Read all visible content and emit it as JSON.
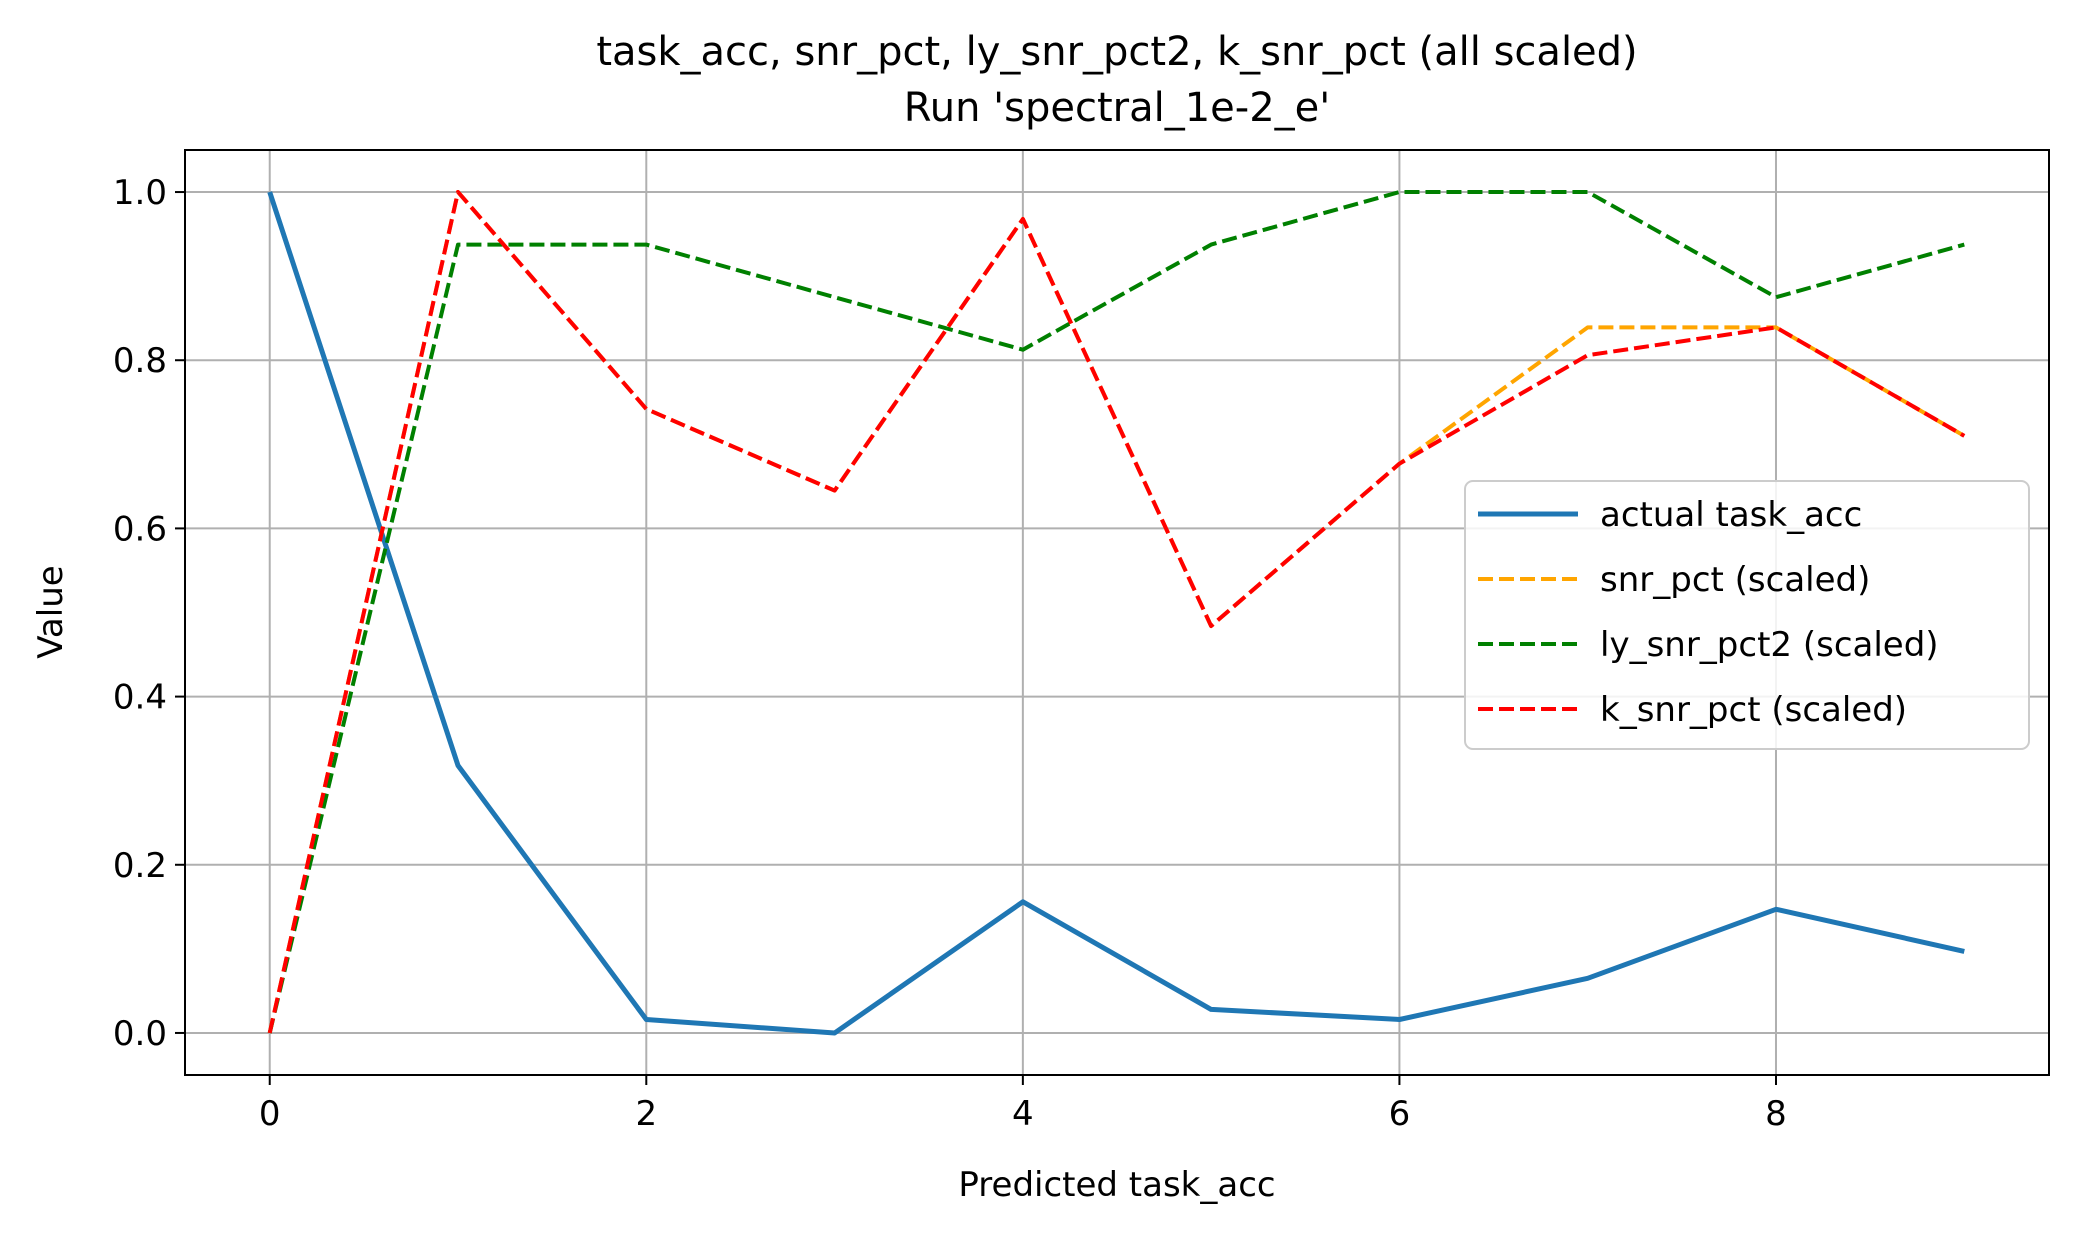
{
  "chart_data": {
    "type": "line",
    "title_line1": "task_acc, snr_pct, ly_snr_pct2, k_snr_pct (all scaled)",
    "title_line2": "Run 'spectral_1e-2_e'",
    "xlabel": "Predicted task_acc",
    "ylabel": "Value",
    "xlim": [
      -0.45,
      9.45
    ],
    "ylim": [
      -0.05,
      1.05
    ],
    "xticks": [
      0,
      2,
      4,
      6,
      8
    ],
    "yticks": [
      0.0,
      0.2,
      0.4,
      0.6,
      0.8,
      1.0
    ],
    "xtick_labels": [
      "0",
      "2",
      "4",
      "6",
      "8"
    ],
    "ytick_labels": [
      "0.0",
      "0.2",
      "0.4",
      "0.6",
      "0.8",
      "1.0"
    ],
    "grid": true,
    "legend_position": "center-right",
    "x": [
      0,
      1,
      2,
      3,
      4,
      5,
      6,
      7,
      8,
      9
    ],
    "series": [
      {
        "name": "actual task_acc",
        "color": "#1f77b4",
        "style": "solid",
        "values": [
          1.0,
          0.318,
          0.016,
          0.0,
          0.156,
          0.028,
          0.016,
          0.065,
          0.147,
          0.097
        ]
      },
      {
        "name": "snr_pct (scaled)",
        "color": "#ffa500",
        "style": "dashed",
        "values": [
          0.0,
          1.0,
          0.742,
          0.645,
          0.968,
          0.484,
          0.677,
          0.839,
          0.839,
          0.71
        ]
      },
      {
        "name": "ly_snr_pct2 (scaled)",
        "color": "#008000",
        "style": "dashed",
        "values": [
          0.0,
          0.9375,
          0.9375,
          0.875,
          0.8125,
          0.9375,
          1.0,
          1.0,
          0.875,
          0.9375
        ]
      },
      {
        "name": "k_snr_pct (scaled)",
        "color": "#ff0000",
        "style": "dashed",
        "values": [
          0.0,
          1.0,
          0.742,
          0.645,
          0.968,
          0.484,
          0.677,
          0.806,
          0.839,
          0.71
        ]
      }
    ]
  }
}
